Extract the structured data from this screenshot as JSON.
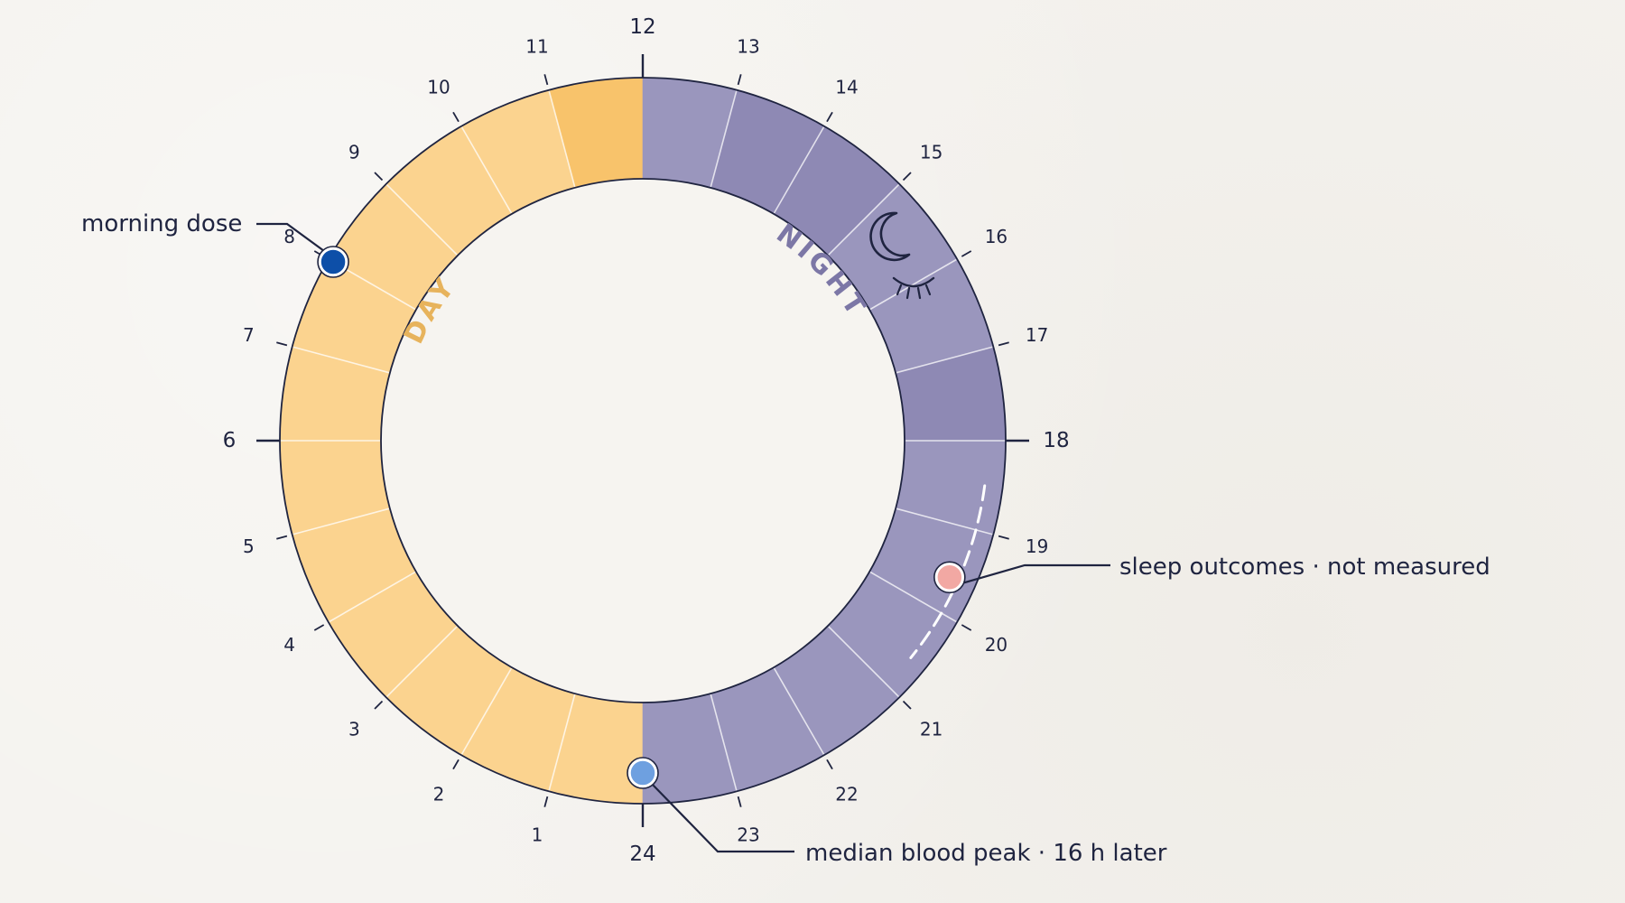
{
  "clock": {
    "hours": [
      "1",
      "2",
      "3",
      "4",
      "5",
      "6",
      "7",
      "8",
      "9",
      "10",
      "11",
      "12",
      "13",
      "14",
      "15",
      "16",
      "17",
      "18",
      "19",
      "20",
      "21",
      "22",
      "23",
      "24"
    ],
    "major_hours": [
      6,
      12,
      18,
      24
    ],
    "day_range": [
      0,
      12
    ],
    "night_range": [
      12,
      24
    ],
    "day_word": "DAY",
    "night_word": "NIGHT",
    "colors": {
      "day": "#fbd38f",
      "day_dark": "#f8c36b",
      "night": "#9a96bd",
      "night_dark": "#8e89b4",
      "ink": "#1f2440",
      "day_word": "#e7b35c",
      "night_word": "#7c77a6"
    },
    "icons": [
      "moon-icon",
      "closed-eye-icon"
    ]
  },
  "markers": {
    "morning_dose": {
      "label": "morning dose",
      "hour": 8,
      "color": "#0d4fa8"
    },
    "blood_peak": {
      "label": "median blood peak · 16 h later",
      "hour": 24,
      "color": "#6ea0e0"
    },
    "sleep_outcomes": {
      "label": "sleep outcomes · not measured",
      "hour": 19.6,
      "color": "#f2a8a3",
      "dashed_range": [
        18.5,
        20.6
      ]
    }
  }
}
